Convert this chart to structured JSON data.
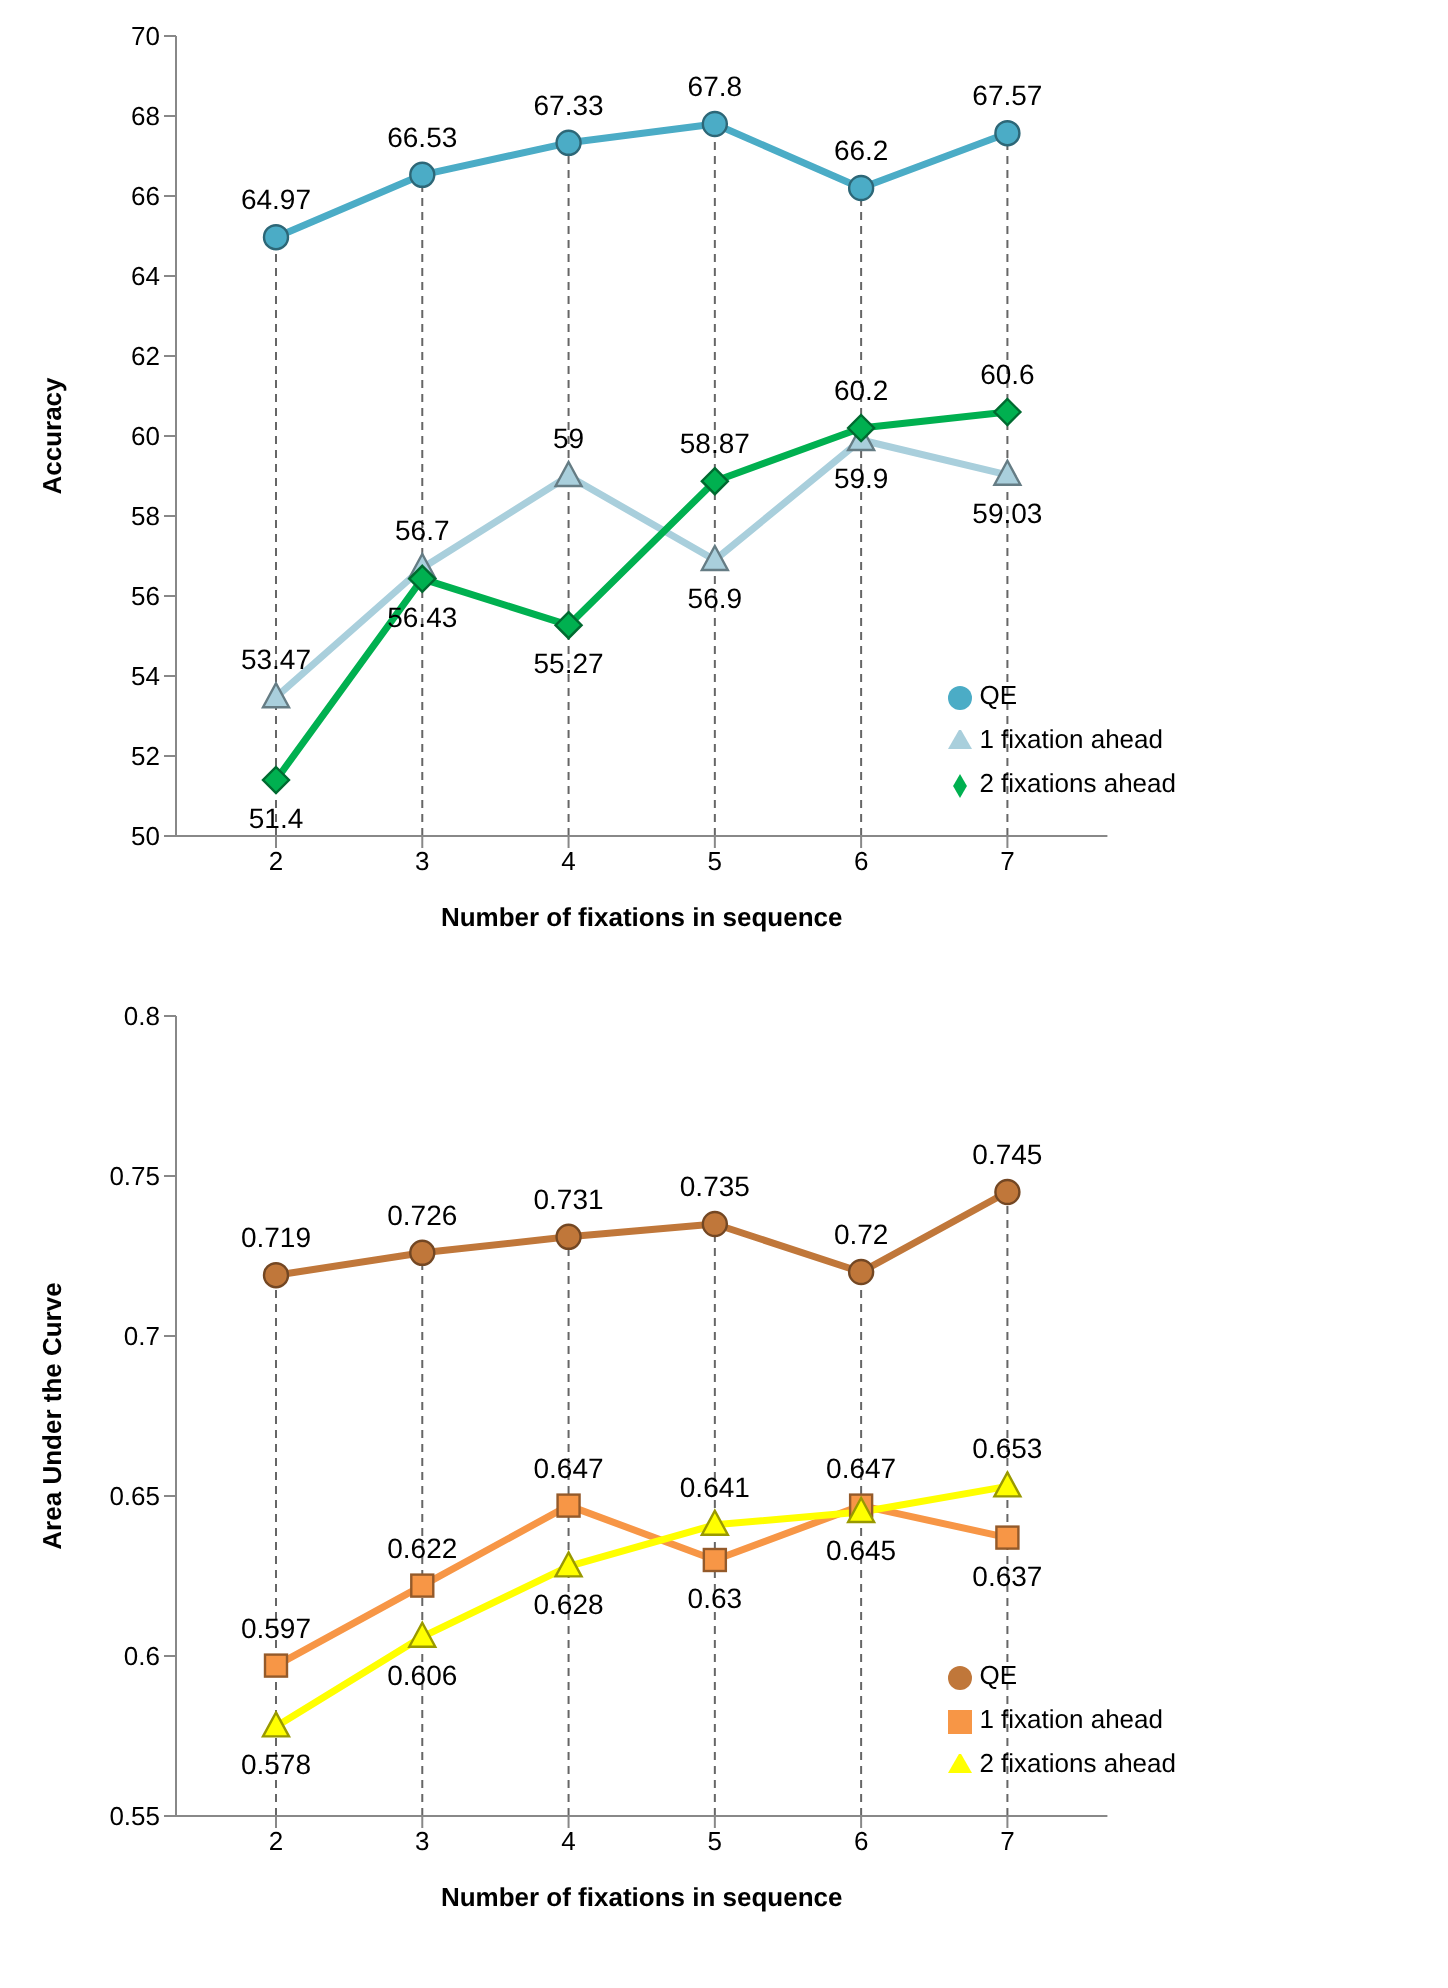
{
  "chart_data": [
    {
      "type": "line",
      "xlabel": "Number of fixations in sequence",
      "ylabel": "Accuracy",
      "categories": [
        "2",
        "3",
        "4",
        "5",
        "6",
        "7"
      ],
      "ylim": [
        50,
        70
      ],
      "yticks": [
        50,
        52,
        54,
        56,
        58,
        60,
        62,
        64,
        66,
        68,
        70
      ],
      "grid": "x",
      "legend": "bottom right",
      "data_labels": true,
      "series": [
        {
          "name": "QE",
          "color": "#4bacc6",
          "marker": "circle",
          "values": [
            64.97,
            66.53,
            67.33,
            67.8,
            66.2,
            67.57
          ]
        },
        {
          "name": "1 fixation ahead",
          "color": "#a9cfdc",
          "marker": "triangle",
          "values": [
            53.47,
            56.7,
            59,
            56.9,
            59.9,
            59.03
          ]
        },
        {
          "name": "2 fixations ahead",
          "color": "#00b050",
          "marker": "diamond",
          "values": [
            51.4,
            56.43,
            55.27,
            58.87,
            60.2,
            60.6
          ]
        }
      ]
    },
    {
      "type": "line",
      "xlabel": "Number of fixations in sequence",
      "ylabel": "Area Under the Curve",
      "categories": [
        "2",
        "3",
        "4",
        "5",
        "6",
        "7"
      ],
      "ylim": [
        0.55,
        0.8
      ],
      "yticks": [
        0.55,
        0.6,
        0.65,
        0.7,
        0.75,
        0.8
      ],
      "grid": "x",
      "legend": "bottom right",
      "data_labels": true,
      "series": [
        {
          "name": "QE",
          "color": "#c0773a",
          "marker": "circle",
          "values": [
            0.719,
            0.726,
            0.731,
            0.735,
            0.72,
            0.745
          ]
        },
        {
          "name": "1 fixation ahead",
          "color": "#f79646",
          "marker": "square",
          "values": [
            0.597,
            0.622,
            0.647,
            0.63,
            0.647,
            0.637
          ]
        },
        {
          "name": "2 fixations ahead",
          "color": "#ffff00",
          "marker": "triangle",
          "values": [
            0.578,
            0.606,
            0.628,
            0.641,
            0.645,
            0.653
          ]
        }
      ]
    }
  ]
}
